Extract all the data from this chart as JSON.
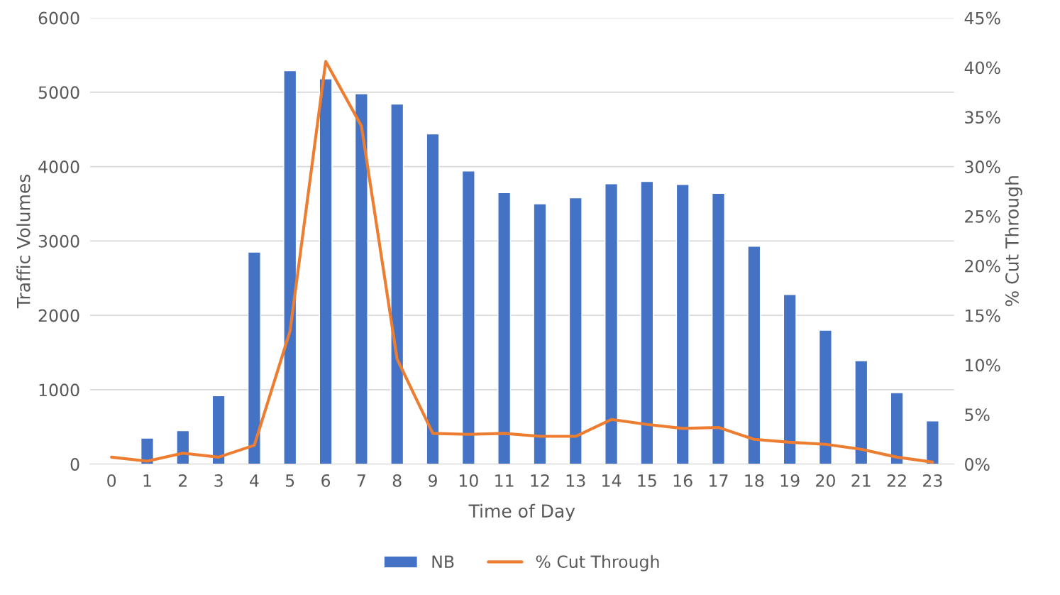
{
  "chart_data": {
    "type": "bar",
    "xlabel": "Time of Day",
    "ylabel": "Traffic Volumes",
    "y2label": "% Cut Through",
    "categories": [
      "0",
      "1",
      "2",
      "3",
      "4",
      "5",
      "6",
      "7",
      "8",
      "9",
      "10",
      "11",
      "12",
      "13",
      "14",
      "15",
      "16",
      "17",
      "18",
      "19",
      "20",
      "21",
      "22",
      "23"
    ],
    "series": [
      {
        "name": "NB",
        "color": "#4472c4",
        "values": [
          null,
          350,
          450,
          920,
          2850,
          5290,
          5180,
          4980,
          4840,
          4440,
          3940,
          3650,
          3500,
          3580,
          3770,
          3800,
          3760,
          3640,
          2930,
          2280,
          1800,
          1390,
          960,
          580
        ]
      },
      {
        "name": "% Cut Through",
        "type": "line",
        "axis": "y2",
        "color": "#ed7d31",
        "values": [
          0.7,
          0.3,
          1.1,
          0.7,
          1.9,
          13.4,
          40.6,
          34.1,
          10.6,
          3.1,
          3.0,
          3.1,
          2.8,
          2.8,
          4.5,
          4.0,
          3.6,
          3.7,
          2.5,
          2.2,
          2.0,
          1.5,
          0.7,
          0.2
        ]
      }
    ],
    "ylim": [
      0,
      6000
    ],
    "yticks": [
      0,
      1000,
      2000,
      3000,
      4000,
      5000,
      6000
    ],
    "y2lim": [
      0,
      45
    ],
    "y2ticks": [
      {
        "value": 0,
        "label": "0%"
      },
      {
        "value": 5,
        "label": "5%"
      },
      {
        "value": 10,
        "label": "10%"
      },
      {
        "value": 15,
        "label": "15%"
      },
      {
        "value": 20,
        "label": "20%"
      },
      {
        "value": 25,
        "label": "25%"
      },
      {
        "value": 30,
        "label": "30%"
      },
      {
        "value": 35,
        "label": "35%"
      },
      {
        "value": 40,
        "label": "40%"
      },
      {
        "value": 45,
        "label": "45%"
      }
    ],
    "grid": "y",
    "legend": "bottom",
    "marker": "none",
    "line_style": "solid"
  }
}
